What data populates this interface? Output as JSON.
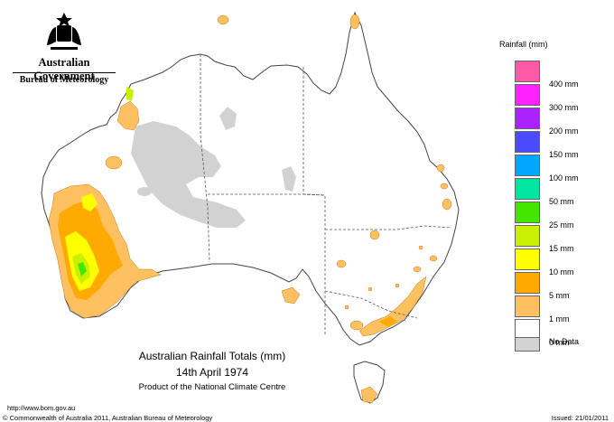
{
  "header": {
    "government": "Australian Government",
    "bureau": "Bureau of Meteorology"
  },
  "map_title": {
    "line1": "Australian Rainfall Totals (mm)",
    "line2": "14th April 1974",
    "line3": "Product of the National Climate Centre"
  },
  "legend": {
    "title": "Rainfall (mm)",
    "items": [
      {
        "label": "400 mm",
        "color": "#ff5aa8"
      },
      {
        "label": "300 mm",
        "color": "#ff22ff"
      },
      {
        "label": "200 mm",
        "color": "#aa22ff"
      },
      {
        "label": "150 mm",
        "color": "#4a4aff"
      },
      {
        "label": "100 mm",
        "color": "#00a6ff"
      },
      {
        "label": "50 mm",
        "color": "#00e6a0"
      },
      {
        "label": "25 mm",
        "color": "#44e600"
      },
      {
        "label": "15 mm",
        "color": "#c8f000"
      },
      {
        "label": "10 mm",
        "color": "#ffff00"
      },
      {
        "label": "5 mm",
        "color": "#ffaa00"
      },
      {
        "label": "1 mm",
        "color": "#ffc060"
      },
      {
        "label": "0 mm",
        "color": "#ffffff"
      },
      {
        "label": "No Data",
        "color": "#d2d2d2"
      }
    ]
  },
  "footer": {
    "url": "http://www.bom.gov.au",
    "copyright": "© Commonwealth of Australia 2011, Australian Bureau of Meteorology",
    "issued": "Issued: 21/01/2011"
  }
}
